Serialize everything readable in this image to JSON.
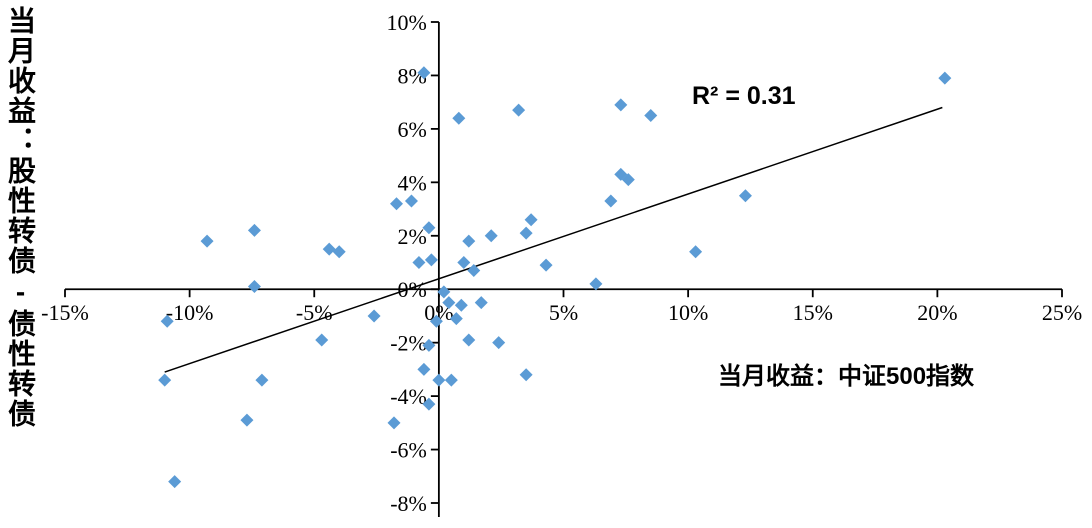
{
  "chart_data": {
    "type": "scatter",
    "title": "",
    "xlabel": "当月收益：中证500指数",
    "ylabel": "当月收益：股性转债-债性转债",
    "annotation": "R² = 0.31",
    "r_squared": 0.31,
    "xlim": [
      -15,
      25
    ],
    "ylim": [
      -8,
      10
    ],
    "grid": false,
    "legend": "none",
    "x_tick_values": [
      -15,
      -10,
      -5,
      0,
      5,
      10,
      15,
      20,
      25
    ],
    "x_tick_labels": [
      "-15%",
      "-10%",
      "-5%",
      "0%",
      "5%",
      "10%",
      "15%",
      "20%",
      "25%"
    ],
    "y_tick_values": [
      -8,
      -6,
      -4,
      -2,
      0,
      2,
      4,
      6,
      8,
      10
    ],
    "y_tick_labels": [
      "-8%",
      "-6%",
      "-4%",
      "-2%",
      "0%",
      "2%",
      "4%",
      "6%",
      "8%",
      "10%"
    ],
    "marker_color": "#5B9BD5",
    "axis_color": "#000000",
    "trendline": {
      "x1": -11.0,
      "y1": -3.1,
      "x2": 20.2,
      "y2": 6.8,
      "color": "#000000"
    },
    "points": [
      [
        -0.6,
        8.1
      ],
      [
        20.3,
        7.9
      ],
      [
        0.8,
        6.4
      ],
      [
        3.2,
        6.7
      ],
      [
        7.3,
        6.9
      ],
      [
        8.5,
        6.5
      ],
      [
        7.3,
        4.3
      ],
      [
        7.6,
        4.1
      ],
      [
        6.9,
        3.3
      ],
      [
        -1.7,
        3.2
      ],
      [
        -1.1,
        3.3
      ],
      [
        12.3,
        3.5
      ],
      [
        3.7,
        2.6
      ],
      [
        -7.4,
        2.2
      ],
      [
        -9.3,
        1.8
      ],
      [
        -0.4,
        2.3
      ],
      [
        1.2,
        1.8
      ],
      [
        2.1,
        2.0
      ],
      [
        3.5,
        2.1
      ],
      [
        10.3,
        1.4
      ],
      [
        -4.4,
        1.5
      ],
      [
        -4.0,
        1.4
      ],
      [
        -0.8,
        1.0
      ],
      [
        -0.3,
        1.1
      ],
      [
        1.0,
        1.0
      ],
      [
        1.4,
        0.7
      ],
      [
        4.3,
        0.9
      ],
      [
        -7.4,
        0.1
      ],
      [
        0.2,
        -0.1
      ],
      [
        6.3,
        0.2
      ],
      [
        0.4,
        -0.5
      ],
      [
        0.9,
        -0.6
      ],
      [
        1.7,
        -0.5
      ],
      [
        -2.6,
        -1.0
      ],
      [
        -0.1,
        -1.2
      ],
      [
        0.7,
        -1.1
      ],
      [
        -10.9,
        -1.2
      ],
      [
        -4.7,
        -1.9
      ],
      [
        -0.4,
        -2.1
      ],
      [
        1.2,
        -1.9
      ],
      [
        2.4,
        -2.0
      ],
      [
        -11.0,
        -3.4
      ],
      [
        -7.1,
        -3.4
      ],
      [
        3.5,
        -3.2
      ],
      [
        0.0,
        -3.4
      ],
      [
        0.5,
        -3.4
      ],
      [
        -0.6,
        -3.0
      ],
      [
        -0.4,
        -4.3
      ],
      [
        -7.7,
        -4.9
      ],
      [
        -1.8,
        -5.0
      ],
      [
        -10.6,
        -7.2
      ]
    ]
  }
}
